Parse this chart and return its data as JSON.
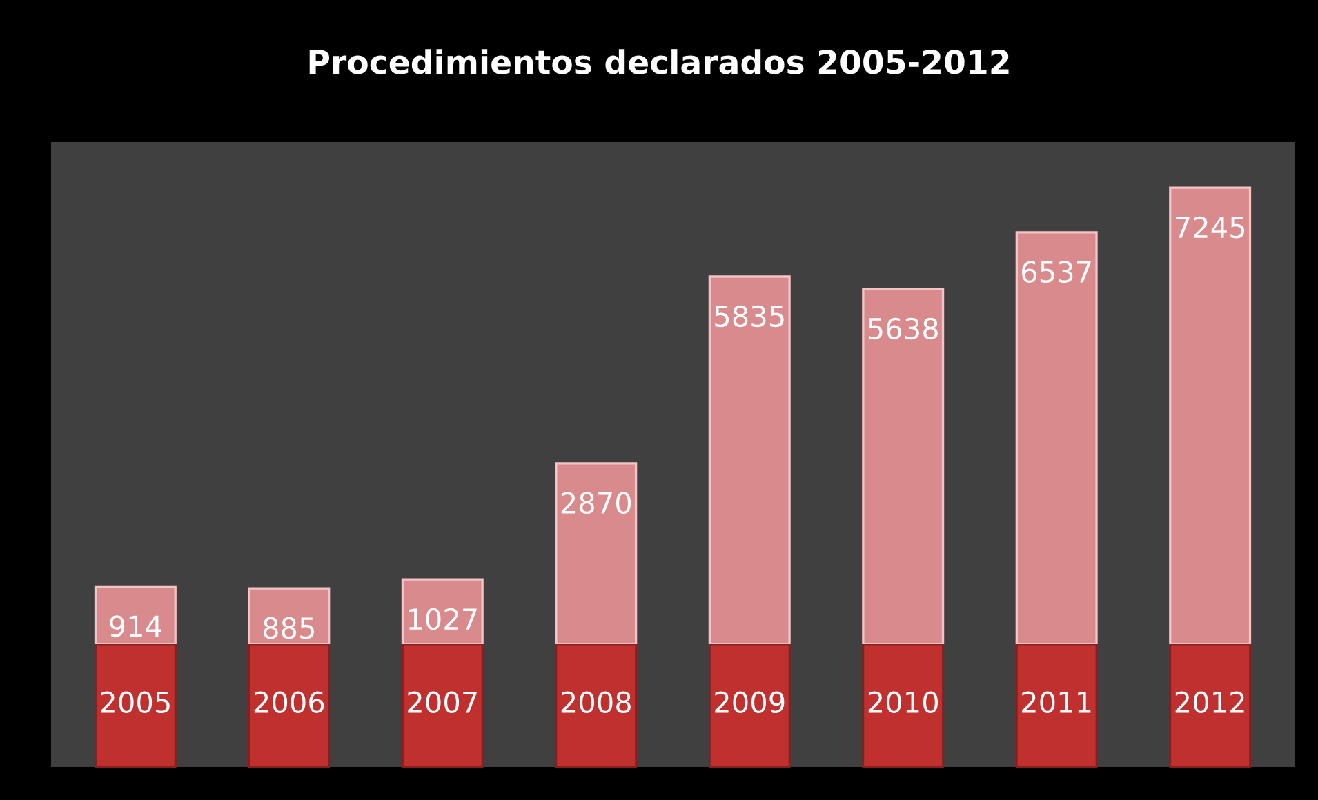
{
  "chart_data": {
    "type": "bar",
    "title": "Procedimientos declarados 2005-2012",
    "categories": [
      "2005",
      "2006",
      "2007",
      "2008",
      "2009",
      "2010",
      "2011",
      "2012"
    ],
    "values": [
      914,
      885,
      1027,
      2870,
      5835,
      5638,
      6537,
      7245
    ],
    "color": "#d98a8c",
    "data_labels": true,
    "grid": false,
    "legend": false
  }
}
